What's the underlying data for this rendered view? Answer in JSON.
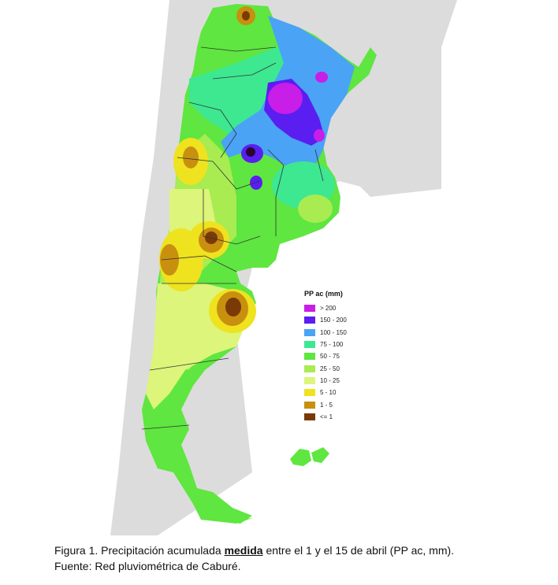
{
  "figure": {
    "caption_prefix": "Figura 1. Precipitación acumulada ",
    "caption_emph": "medida",
    "caption_suffix": " entre el 1 y el 15 de abril (PP ac, mm).",
    "source": "Fuente: Red pluviométrica de Caburé."
  },
  "legend": {
    "title": "PP ac (mm)",
    "items": [
      {
        "label": "> 200",
        "color": "#c81ee8"
      },
      {
        "label": "150 - 200",
        "color": "#5a1ef0"
      },
      {
        "label": "100 - 150",
        "color": "#4aa3f5"
      },
      {
        "label": "75 - 100",
        "color": "#3de891"
      },
      {
        "label": "50 - 75",
        "color": "#5fe640"
      },
      {
        "label": "25 - 50",
        "color": "#a8ec52"
      },
      {
        "label": "10 - 25",
        "color": "#dcf57a"
      },
      {
        "label": "5 - 10",
        "color": "#efe21f"
      },
      {
        "label": "1 - 5",
        "color": "#c8900e"
      },
      {
        "label": "<= 1",
        "color": "#7a3a06"
      }
    ]
  },
  "colors": {
    "neighbor_land": "#dcdcdc",
    "border_line": "#ffffff",
    "province_line": "#333333",
    "ocean": "#ffffff"
  }
}
